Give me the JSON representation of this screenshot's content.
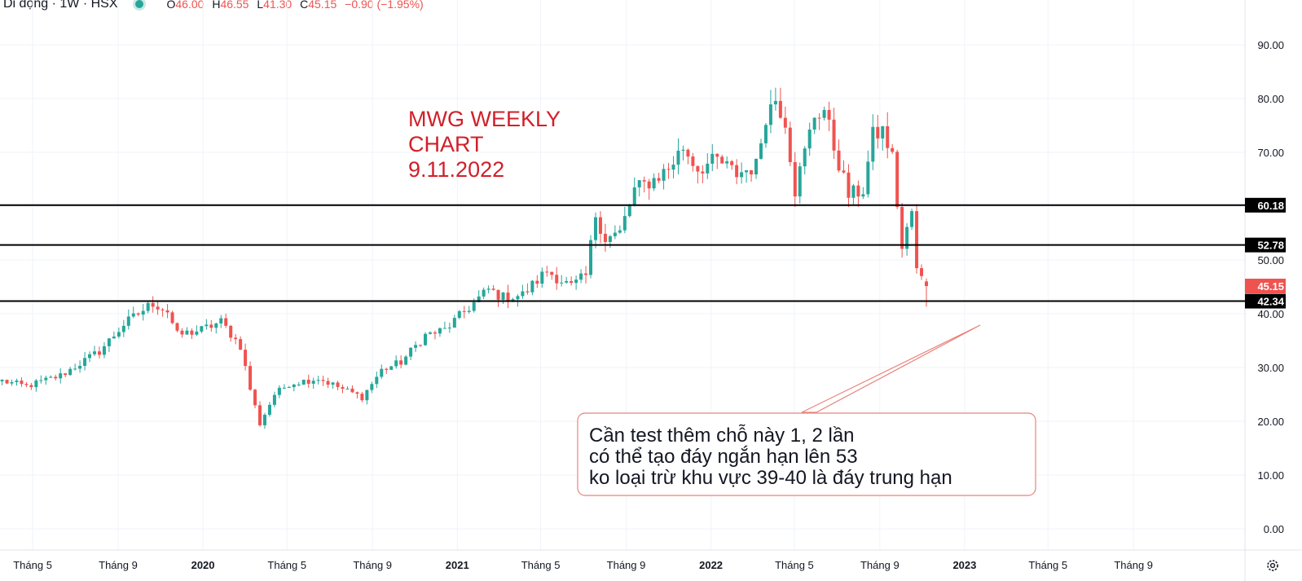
{
  "header": {
    "symbol_text": "i Di động · 1W · HSX",
    "ohlc": {
      "o": "46.00",
      "h": "46.55",
      "l": "41.30",
      "c": "45.15",
      "change": "−0.90 (−1.95%)"
    }
  },
  "annotation": {
    "title_lines": [
      "MWG WEEKLY",
      "CHART",
      "9.11.2022"
    ],
    "note_lines": [
      "Cần test thêm chỗ này 1, 2 lần",
      "có thể tạo đáy ngắn hạn lên 53",
      "ko loại trừ khu vực 39-40 là đáy trung hạn"
    ]
  },
  "colors": {
    "up": "#26a69a",
    "down": "#ef5350",
    "grid": "#f0f3fa",
    "text": "#131722",
    "annot": "#d0202a",
    "level": "#000000"
  },
  "chart_data": {
    "type": "candlestick",
    "title": "",
    "ylim": [
      -2,
      98
    ],
    "yticks": [
      0,
      10,
      20,
      30,
      40,
      50,
      60,
      70,
      80,
      90
    ],
    "ytick_labels": [
      "0.00",
      "10.00",
      "20.00",
      "30.00",
      "40.00",
      "50.00",
      "60.00",
      "70.00",
      "80.00",
      "90.00"
    ],
    "xtick_labels": [
      "Tháng 5",
      "Tháng 9",
      "2020",
      "Tháng 5",
      "Tháng 9",
      "2021",
      "Tháng 5",
      "Tháng 9",
      "2022",
      "Tháng 5",
      "Tháng 9",
      "2023",
      "Tháng 5",
      "Tháng 9"
    ],
    "xtick_dates": [
      "2019-05-01",
      "2019-09-01",
      "2020-01-01",
      "2020-05-01",
      "2020-09-01",
      "2021-01-01",
      "2021-05-01",
      "2021-09-01",
      "2022-01-01",
      "2022-05-01",
      "2022-09-01",
      "2023-01-01",
      "2023-05-01",
      "2023-09-01"
    ],
    "xtick_bold": [
      false,
      false,
      true,
      false,
      false,
      true,
      false,
      false,
      true,
      false,
      false,
      true,
      false,
      false
    ],
    "xlim": [
      "2019-03-15",
      "2023-12-20"
    ],
    "last_price": 45.15,
    "horizontal_levels": [
      60.18,
      52.78,
      42.34
    ],
    "anchors": [
      [
        "2019-03-18",
        27.5
      ],
      [
        "2019-04-22",
        26.5
      ],
      [
        "2019-06-10",
        28.5
      ],
      [
        "2019-08-05",
        33
      ],
      [
        "2019-09-09",
        38
      ],
      [
        "2019-10-21",
        42
      ],
      [
        "2019-11-11",
        40.5
      ],
      [
        "2019-11-25",
        36
      ],
      [
        "2019-12-30",
        37
      ],
      [
        "2020-01-27",
        38.5
      ],
      [
        "2020-02-24",
        34
      ],
      [
        "2020-03-09",
        26
      ],
      [
        "2020-03-23",
        19.5
      ],
      [
        "2020-04-13",
        25
      ],
      [
        "2020-05-04",
        27
      ],
      [
        "2020-06-15",
        28
      ],
      [
        "2020-07-20",
        26
      ],
      [
        "2020-08-17",
        24.5
      ],
      [
        "2020-09-14",
        29.5
      ],
      [
        "2020-10-12",
        31
      ],
      [
        "2020-11-16",
        36
      ],
      [
        "2020-12-14",
        37
      ],
      [
        "2021-01-04",
        39.5
      ],
      [
        "2021-01-25",
        42
      ],
      [
        "2021-02-15",
        44.5
      ],
      [
        "2021-03-08",
        43
      ],
      [
        "2021-04-05",
        43.5
      ],
      [
        "2021-05-10",
        48
      ],
      [
        "2021-06-14",
        45
      ],
      [
        "2021-07-05",
        47
      ],
      [
        "2021-07-19",
        58.5
      ],
      [
        "2021-08-02",
        54
      ],
      [
        "2021-08-23",
        55
      ],
      [
        "2021-09-13",
        63
      ],
      [
        "2021-10-11",
        65
      ],
      [
        "2021-11-01",
        67
      ],
      [
        "2021-11-22",
        71
      ],
      [
        "2021-12-13",
        67
      ],
      [
        "2022-01-10",
        68.5
      ],
      [
        "2022-02-07",
        66
      ],
      [
        "2022-03-07",
        67.5
      ],
      [
        "2022-03-21",
        77
      ],
      [
        "2022-04-04",
        80
      ],
      [
        "2022-04-18",
        76
      ],
      [
        "2022-05-02",
        63
      ],
      [
        "2022-05-16",
        70
      ],
      [
        "2022-05-30",
        77
      ],
      [
        "2022-06-13",
        78
      ],
      [
        "2022-06-27",
        71
      ],
      [
        "2022-07-18",
        62
      ],
      [
        "2022-08-08",
        63
      ],
      [
        "2022-08-22",
        73
      ],
      [
        "2022-09-05",
        74
      ],
      [
        "2022-09-19",
        69
      ],
      [
        "2022-10-03",
        52
      ],
      [
        "2022-10-17",
        59
      ],
      [
        "2022-10-24",
        48
      ],
      [
        "2022-11-07",
        45.15
      ]
    ],
    "current_week": {
      "date": "2022-11-07",
      "o": 46.0,
      "h": 46.55,
      "l": 41.3,
      "c": 45.15
    }
  }
}
